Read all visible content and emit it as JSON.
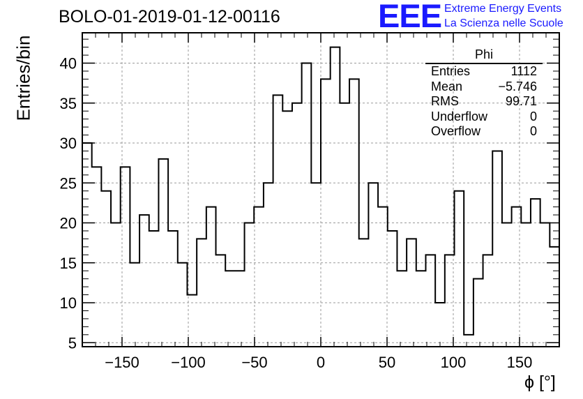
{
  "title": "BOLO-01-2019-01-12-00116",
  "logo": {
    "mark": "EEE",
    "line1": "Extreme Energy Events",
    "line2": "La Scienza nelle Scuole",
    "color": "#1a1aff"
  },
  "stats_box": {
    "name": "Phi",
    "rows": [
      {
        "label": "Entries",
        "value": "1112"
      },
      {
        "label": "Mean",
        "value": "−5.746"
      },
      {
        "label": "RMS",
        "value": "99.71"
      },
      {
        "label": "Underflow",
        "value": "0"
      },
      {
        "label": "Overflow",
        "value": "0"
      }
    ]
  },
  "chart_data": {
    "type": "bar",
    "subtype": "histogram-step",
    "xlabel": "ϕ [°]",
    "ylabel": "Entries/bin",
    "xlim": [
      -180,
      180
    ],
    "ylim": [
      4.5,
      43.8
    ],
    "bin_width": 7.2,
    "x_ticks": [
      -150,
      -100,
      -50,
      0,
      50,
      100,
      150
    ],
    "x_tick_labels": [
      "−150",
      "−100",
      "−50",
      "0",
      "50",
      "100",
      "150"
    ],
    "y_ticks": [
      5,
      10,
      15,
      20,
      25,
      30,
      35,
      40
    ],
    "y_tick_labels": [
      "5",
      "10",
      "15",
      "20",
      "25",
      "30",
      "35",
      "40"
    ],
    "grid": true,
    "line_color": "#000000",
    "values": [
      30,
      27,
      24,
      20,
      27,
      15,
      21,
      19,
      28,
      19,
      15,
      11,
      18,
      22,
      16,
      14,
      14,
      20,
      22,
      25,
      36,
      34,
      35,
      40,
      25,
      38,
      42,
      35,
      38,
      18,
      25,
      22,
      19,
      14,
      18,
      14,
      16,
      10,
      16,
      24,
      6,
      13,
      16,
      29,
      20,
      22,
      20,
      23,
      20,
      17
    ]
  }
}
